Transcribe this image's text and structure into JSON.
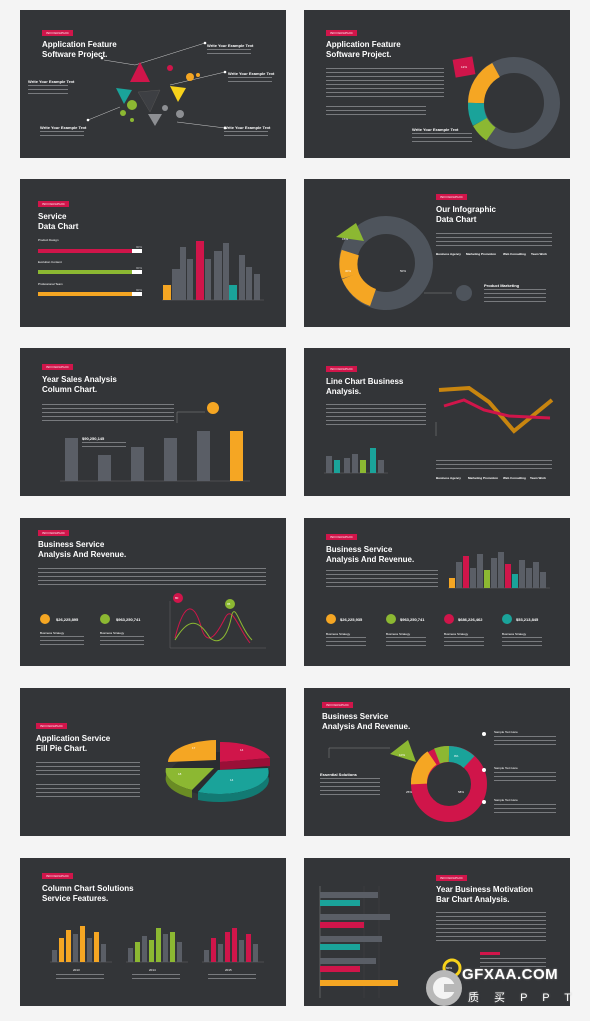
{
  "tag_label": "INFOGRAPHIC",
  "slides": [
    {
      "title_line1": "Application Feature",
      "title_line2": "Software Project.",
      "labels": [
        "Write Your Example Text",
        "Write Your Example Text",
        "Write Your Example Text",
        "Write Your Example Text",
        "Write Your Example Text"
      ],
      "center": "Write Your Example Text"
    },
    {
      "title_line1": "Application Feature",
      "title_line2": "Software Project.",
      "pct_small": "12%"
    },
    {
      "title_line1": "Service",
      "title_line2": "Data Chart",
      "bars": [
        {
          "label": "Product Design",
          "pct": "90%",
          "value": 0.9,
          "color": "#d0154a"
        },
        {
          "label": "Evolution Content",
          "pct": "90%",
          "value": 0.9,
          "color": "#8cb832"
        },
        {
          "label": "Professional Team",
          "pct": "90%",
          "value": 0.9,
          "color": "#f5a623"
        }
      ]
    },
    {
      "title_line1": "Our Infographic",
      "title_line2": "Data Chart",
      "donut": [
        {
          "pct": "50%",
          "value": 50
        },
        {
          "pct": "30%",
          "value": 30
        },
        {
          "pct": "15%",
          "value": 15
        }
      ],
      "columns": [
        "Business Agency",
        "Marketing Promotion",
        "Web Consulting",
        "Team Work"
      ],
      "feature": "Product Marketing"
    },
    {
      "title_line1": "Year Sales Analysis",
      "title_line2": "Column Chart.",
      "value_label": "$90,250,145"
    },
    {
      "title_line1": "Line Chart Business",
      "title_line2": "Analysis.",
      "columns": [
        "Business Agency",
        "Marketing Promotion",
        "Web Consulting",
        "Team Work"
      ]
    },
    {
      "title_line1": "Business Service",
      "title_line2": "Analysis And Revenue.",
      "values": [
        "$26,225,895",
        "$963,250,741"
      ],
      "subs": [
        "Business Strategy",
        "Business Strategy"
      ],
      "badges": [
        "80",
        "95"
      ]
    },
    {
      "title_line1": "Business Service",
      "title_line2": "Analysis And Revenue.",
      "values": [
        "$26,225,935",
        "$963,250,741",
        "$686,226,462",
        "$53,213,845"
      ],
      "subs": [
        "Business Strategy",
        "Business Strategy",
        "Business Strategy",
        "Business Strategy"
      ]
    },
    {
      "title_line1": "Application Service",
      "title_line2": "Fill Pie Chart.",
      "slices": [
        "17",
        "14",
        "14",
        "18"
      ]
    },
    {
      "title_line1": "Business Service",
      "title_line2": "Analysis And Revenue.",
      "donut": [
        "10%",
        "9%",
        "25%",
        "58%"
      ],
      "feature": "Essential Solutions",
      "items": [
        "Sample Text Here",
        "Sample Text Here",
        "Sample Text Here"
      ]
    },
    {
      "title_line1": "Column Chart Solutions",
      "title_line2": "Service Features.",
      "years": [
        "2013",
        "2014",
        "2015"
      ]
    },
    {
      "title_line1": "Year Business Motivation",
      "title_line2": "Bar Chart Analysis.",
      "gauge": "60%"
    }
  ],
  "watermark": {
    "brand": "GFXAA.COM",
    "sub": "质 买 P P T"
  }
}
